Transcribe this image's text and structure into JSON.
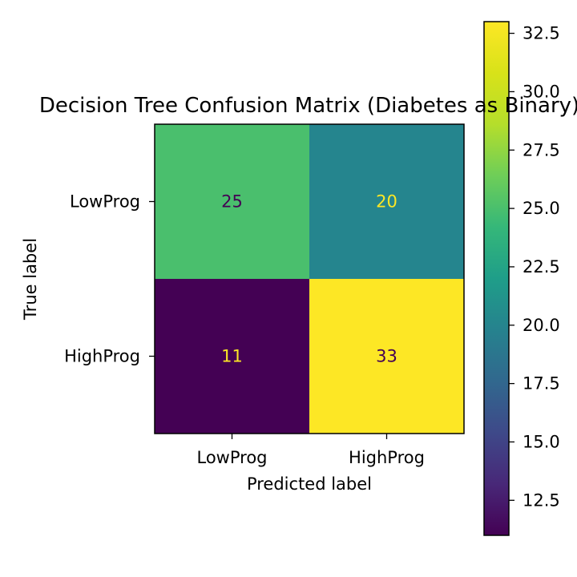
{
  "chart_data": {
    "type": "heatmap",
    "title": "Decision Tree Confusion Matrix (Diabetes as Binary)",
    "xlabel": "Predicted label",
    "ylabel": "True label",
    "x_categories": [
      "LowProg",
      "HighProg"
    ],
    "y_categories": [
      "LowProg",
      "HighProg"
    ],
    "values": [
      [
        25,
        20
      ],
      [
        11,
        33
      ]
    ],
    "colormap": "viridis",
    "colorbar": {
      "min": 11,
      "max": 33,
      "ticks": [
        "12.5",
        "15.0",
        "17.5",
        "20.0",
        "22.5",
        "25.0",
        "27.5",
        "30.0",
        "32.5"
      ]
    },
    "grid": false
  }
}
